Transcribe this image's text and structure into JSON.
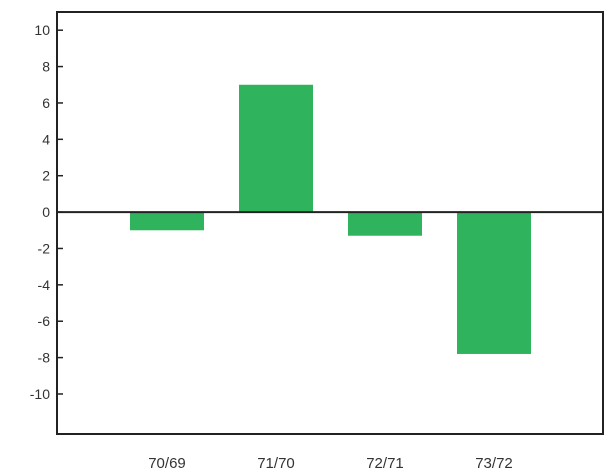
{
  "chart_data": {
    "type": "bar",
    "categories": [
      "70/69",
      "71/70",
      "72/71",
      "73/72"
    ],
    "values": [
      -1.0,
      7.0,
      -1.3,
      -7.8
    ],
    "title": "",
    "xlabel": "",
    "ylabel": "",
    "ylim": [
      -12.2,
      11.0
    ],
    "yticks": [
      10,
      8,
      6,
      4,
      2,
      0,
      -2,
      -4,
      -6,
      -8,
      -10
    ],
    "ytick_labels": [
      "10",
      "8",
      "6",
      "4",
      "2",
      "0",
      "-2",
      "-4",
      "-6",
      "-8",
      "-10"
    ],
    "grid": false,
    "legend": "none",
    "bar_color": "#2fb35c",
    "zero_line": true
  }
}
